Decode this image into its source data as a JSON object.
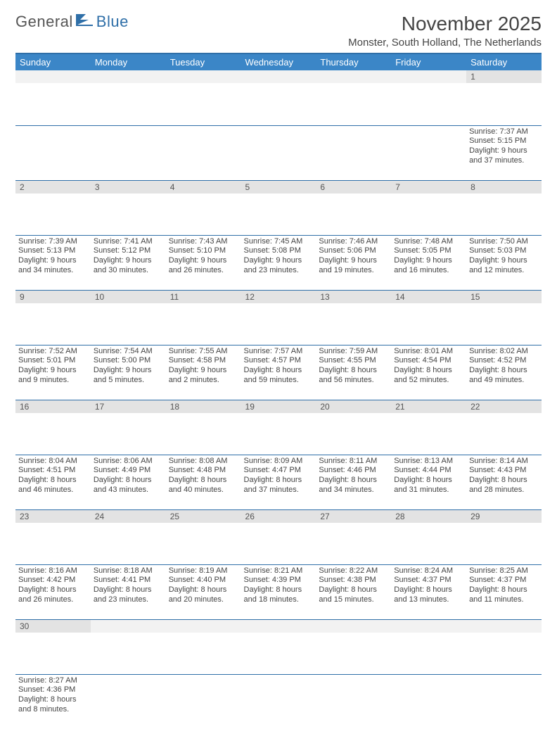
{
  "logo": {
    "text1": "General",
    "text2": "Blue"
  },
  "title": "November 2025",
  "location": "Monster, South Holland, The Netherlands",
  "colors": {
    "header_bg": "#3b86c7",
    "rule": "#2f6fa8",
    "daynum_bg": "#e3e3e3",
    "logo_gray": "#555555",
    "logo_blue": "#2f6fa8"
  },
  "weekdays": [
    "Sunday",
    "Monday",
    "Tuesday",
    "Wednesday",
    "Thursday",
    "Friday",
    "Saturday"
  ],
  "weeks": [
    [
      null,
      null,
      null,
      null,
      null,
      null,
      {
        "n": "1",
        "sr": "7:37 AM",
        "ss": "5:15 PM",
        "dl": "9 hours and 37 minutes."
      }
    ],
    [
      {
        "n": "2",
        "sr": "7:39 AM",
        "ss": "5:13 PM",
        "dl": "9 hours and 34 minutes."
      },
      {
        "n": "3",
        "sr": "7:41 AM",
        "ss": "5:12 PM",
        "dl": "9 hours and 30 minutes."
      },
      {
        "n": "4",
        "sr": "7:43 AM",
        "ss": "5:10 PM",
        "dl": "9 hours and 26 minutes."
      },
      {
        "n": "5",
        "sr": "7:45 AM",
        "ss": "5:08 PM",
        "dl": "9 hours and 23 minutes."
      },
      {
        "n": "6",
        "sr": "7:46 AM",
        "ss": "5:06 PM",
        "dl": "9 hours and 19 minutes."
      },
      {
        "n": "7",
        "sr": "7:48 AM",
        "ss": "5:05 PM",
        "dl": "9 hours and 16 minutes."
      },
      {
        "n": "8",
        "sr": "7:50 AM",
        "ss": "5:03 PM",
        "dl": "9 hours and 12 minutes."
      }
    ],
    [
      {
        "n": "9",
        "sr": "7:52 AM",
        "ss": "5:01 PM",
        "dl": "9 hours and 9 minutes."
      },
      {
        "n": "10",
        "sr": "7:54 AM",
        "ss": "5:00 PM",
        "dl": "9 hours and 5 minutes."
      },
      {
        "n": "11",
        "sr": "7:55 AM",
        "ss": "4:58 PM",
        "dl": "9 hours and 2 minutes."
      },
      {
        "n": "12",
        "sr": "7:57 AM",
        "ss": "4:57 PM",
        "dl": "8 hours and 59 minutes."
      },
      {
        "n": "13",
        "sr": "7:59 AM",
        "ss": "4:55 PM",
        "dl": "8 hours and 56 minutes."
      },
      {
        "n": "14",
        "sr": "8:01 AM",
        "ss": "4:54 PM",
        "dl": "8 hours and 52 minutes."
      },
      {
        "n": "15",
        "sr": "8:02 AM",
        "ss": "4:52 PM",
        "dl": "8 hours and 49 minutes."
      }
    ],
    [
      {
        "n": "16",
        "sr": "8:04 AM",
        "ss": "4:51 PM",
        "dl": "8 hours and 46 minutes."
      },
      {
        "n": "17",
        "sr": "8:06 AM",
        "ss": "4:49 PM",
        "dl": "8 hours and 43 minutes."
      },
      {
        "n": "18",
        "sr": "8:08 AM",
        "ss": "4:48 PM",
        "dl": "8 hours and 40 minutes."
      },
      {
        "n": "19",
        "sr": "8:09 AM",
        "ss": "4:47 PM",
        "dl": "8 hours and 37 minutes."
      },
      {
        "n": "20",
        "sr": "8:11 AM",
        "ss": "4:46 PM",
        "dl": "8 hours and 34 minutes."
      },
      {
        "n": "21",
        "sr": "8:13 AM",
        "ss": "4:44 PM",
        "dl": "8 hours and 31 minutes."
      },
      {
        "n": "22",
        "sr": "8:14 AM",
        "ss": "4:43 PM",
        "dl": "8 hours and 28 minutes."
      }
    ],
    [
      {
        "n": "23",
        "sr": "8:16 AM",
        "ss": "4:42 PM",
        "dl": "8 hours and 26 minutes."
      },
      {
        "n": "24",
        "sr": "8:18 AM",
        "ss": "4:41 PM",
        "dl": "8 hours and 23 minutes."
      },
      {
        "n": "25",
        "sr": "8:19 AM",
        "ss": "4:40 PM",
        "dl": "8 hours and 20 minutes."
      },
      {
        "n": "26",
        "sr": "8:21 AM",
        "ss": "4:39 PM",
        "dl": "8 hours and 18 minutes."
      },
      {
        "n": "27",
        "sr": "8:22 AM",
        "ss": "4:38 PM",
        "dl": "8 hours and 15 minutes."
      },
      {
        "n": "28",
        "sr": "8:24 AM",
        "ss": "4:37 PM",
        "dl": "8 hours and 13 minutes."
      },
      {
        "n": "29",
        "sr": "8:25 AM",
        "ss": "4:37 PM",
        "dl": "8 hours and 11 minutes."
      }
    ],
    [
      {
        "n": "30",
        "sr": "8:27 AM",
        "ss": "4:36 PM",
        "dl": "8 hours and 8 minutes."
      },
      null,
      null,
      null,
      null,
      null,
      null
    ]
  ],
  "labels": {
    "sunrise": "Sunrise:",
    "sunset": "Sunset:",
    "daylight": "Daylight:"
  }
}
